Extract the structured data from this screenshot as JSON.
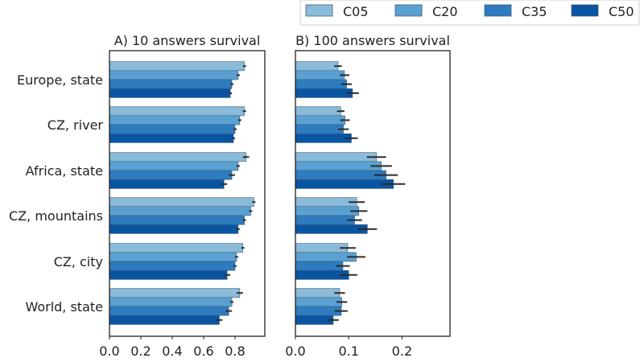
{
  "chart_data": [
    {
      "type": "bar",
      "orientation": "horizontal",
      "title": "A) 10 answers survival",
      "categories": [
        "Europe, state",
        "CZ, river",
        "Africa, state",
        "CZ, mountains",
        "CZ, city",
        "World, state"
      ],
      "xlim": [
        0,
        0.99
      ],
      "xticks": [
        "0.0",
        "0.2",
        "0.4",
        "0.6",
        "0.8"
      ],
      "xtick_values": [
        0,
        0.2,
        0.4,
        0.6,
        0.8
      ],
      "grid": false,
      "series": [
        {
          "name": "C05",
          "color": "#8abbd9",
          "values": [
            0.86,
            0.86,
            0.87,
            0.92,
            0.85,
            0.83
          ],
          "errors": [
            0.01,
            0.01,
            0.02,
            0.01,
            0.01,
            0.02
          ]
        },
        {
          "name": "C20",
          "color": "#5aa1d2",
          "values": [
            0.82,
            0.83,
            0.82,
            0.9,
            0.81,
            0.78
          ],
          "errors": [
            0.01,
            0.01,
            0.01,
            0.01,
            0.01,
            0.01
          ]
        },
        {
          "name": "C35",
          "color": "#2e7bbf",
          "values": [
            0.78,
            0.8,
            0.78,
            0.86,
            0.8,
            0.76
          ],
          "errors": [
            0.01,
            0.01,
            0.02,
            0.01,
            0.01,
            0.02
          ]
        },
        {
          "name": "C50",
          "color": "#0a55a2",
          "values": [
            0.77,
            0.79,
            0.73,
            0.82,
            0.75,
            0.7
          ],
          "errors": [
            0.01,
            0.01,
            0.02,
            0.01,
            0.02,
            0.02
          ]
        }
      ]
    },
    {
      "type": "bar",
      "orientation": "horizontal",
      "title": "B) 100 answers survival",
      "categories": [
        "Europe, state",
        "CZ, river",
        "Africa, state",
        "CZ, mountains",
        "CZ, city",
        "World, state"
      ],
      "xlim": [
        0,
        0.29
      ],
      "xticks": [
        "0.0",
        "0.1",
        "0.2"
      ],
      "xtick_values": [
        0,
        0.1,
        0.2
      ],
      "grid": false,
      "series": [
        {
          "name": "C05",
          "color": "#8abbd9",
          "values": [
            0.08,
            0.085,
            0.152,
            0.115,
            0.098,
            0.083
          ],
          "errors": [
            0.007,
            0.007,
            0.018,
            0.015,
            0.015,
            0.01
          ]
        },
        {
          "name": "C20",
          "color": "#5aa1d2",
          "values": [
            0.092,
            0.093,
            0.161,
            0.119,
            0.114,
            0.087
          ],
          "errors": [
            0.009,
            0.009,
            0.02,
            0.016,
            0.017,
            0.01
          ]
        },
        {
          "name": "C35",
          "color": "#2e7bbf",
          "values": [
            0.096,
            0.09,
            0.17,
            0.111,
            0.089,
            0.086
          ],
          "errors": [
            0.01,
            0.01,
            0.022,
            0.014,
            0.013,
            0.012
          ]
        },
        {
          "name": "C50",
          "color": "#0a55a2",
          "values": [
            0.107,
            0.105,
            0.184,
            0.135,
            0.1,
            0.071
          ],
          "errors": [
            0.012,
            0.012,
            0.022,
            0.018,
            0.016,
            0.01
          ]
        }
      ]
    }
  ],
  "legend": {
    "placement": "top-right, outside plot",
    "entries": [
      "C05",
      "C20",
      "C35",
      "C50"
    ]
  }
}
